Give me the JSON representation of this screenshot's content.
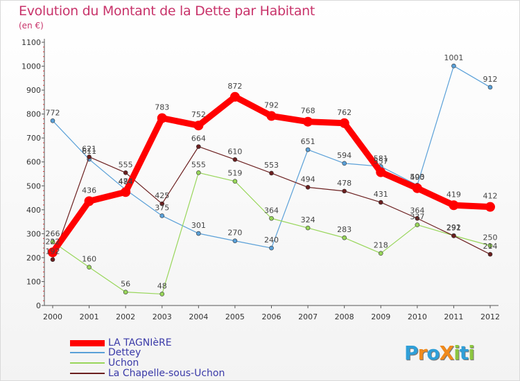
{
  "title": "Evolution du Montant de la Dette par Habitant",
  "subtitle": "(en €)",
  "logo": {
    "text": "ProXiti",
    "letters": [
      {
        "ch": "P",
        "color": "#2f9fd8"
      },
      {
        "ch": "r",
        "color": "#f08a1c"
      },
      {
        "ch": "o",
        "color": "#2f9fd8"
      },
      {
        "ch": "X",
        "color": "#f08a1c"
      },
      {
        "ch": "i",
        "color": "#8cc63f"
      },
      {
        "ch": "t",
        "color": "#2f9fd8"
      },
      {
        "ch": "i",
        "color": "#8cc63f"
      }
    ]
  },
  "legend": [
    {
      "name": "LA TAGNIèRE",
      "color": "#ff0000"
    },
    {
      "name": "Dettey",
      "color": "#5aa0d8"
    },
    {
      "name": "Uchon",
      "color": "#98d65a"
    },
    {
      "name": "La Chapelle-sous-Uchon",
      "color": "#6b1f1f"
    }
  ],
  "chart_data": {
    "type": "line",
    "title": "Evolution du Montant de la Dette par Habitant",
    "subtitle": "(en €)",
    "x": [
      "2000",
      "2001",
      "2002",
      "2003",
      "2004",
      "2005",
      "2006",
      "2007",
      "2008",
      "2009",
      "2010",
      "2011",
      "2012"
    ],
    "yticks": [
      0,
      100,
      200,
      300,
      400,
      500,
      600,
      700,
      800,
      900,
      1000,
      1100
    ],
    "ylim": [
      0,
      1100
    ],
    "grid": false,
    "legend_position": "bottom-left",
    "series": [
      {
        "name": "Dettey",
        "color": "#5aa0d8",
        "width": 1.2,
        "values": [
          772,
          611,
          484,
          375,
          301,
          270,
          240,
          651,
          594,
          581,
          503,
          1001,
          912
        ],
        "labels": [
          "772",
          "611",
          "484",
          "375",
          "301",
          "270",
          "240",
          "651",
          "594",
          "581",
          "503",
          "1001",
          "912"
        ]
      },
      {
        "name": "Uchon",
        "color": "#98d65a",
        "width": 1.2,
        "values": [
          266,
          160,
          56,
          48,
          555,
          519,
          364,
          324,
          283,
          218,
          337,
          292,
          250
        ],
        "labels": [
          "266",
          "160",
          "56",
          "48",
          "555",
          "519",
          "364",
          "324",
          "283",
          "218",
          "337",
          "292",
          "250"
        ]
      },
      {
        "name": "La Chapelle-sous-Uchon",
        "color": "#6b1f1f",
        "width": 1.2,
        "values": [
          192,
          621,
          555,
          425,
          664,
          610,
          553,
          494,
          478,
          431,
          364,
          291,
          214
        ],
        "labels": [
          "192",
          "621",
          "555",
          "425",
          "664",
          "610",
          "553",
          "494",
          "478",
          "431",
          "364",
          "291",
          "214"
        ]
      },
      {
        "name": "LA TAGNIèRE",
        "color": "#ff0000",
        "width": 9,
        "values": [
          222,
          436,
          474,
          783,
          752,
          872,
          792,
          768,
          762,
          557,
          490,
          419,
          412
        ],
        "labels": [
          "222",
          "436",
          "474",
          "783",
          "752",
          "872",
          "792",
          "768",
          "762",
          "557",
          "490",
          "419",
          "412"
        ]
      }
    ]
  }
}
